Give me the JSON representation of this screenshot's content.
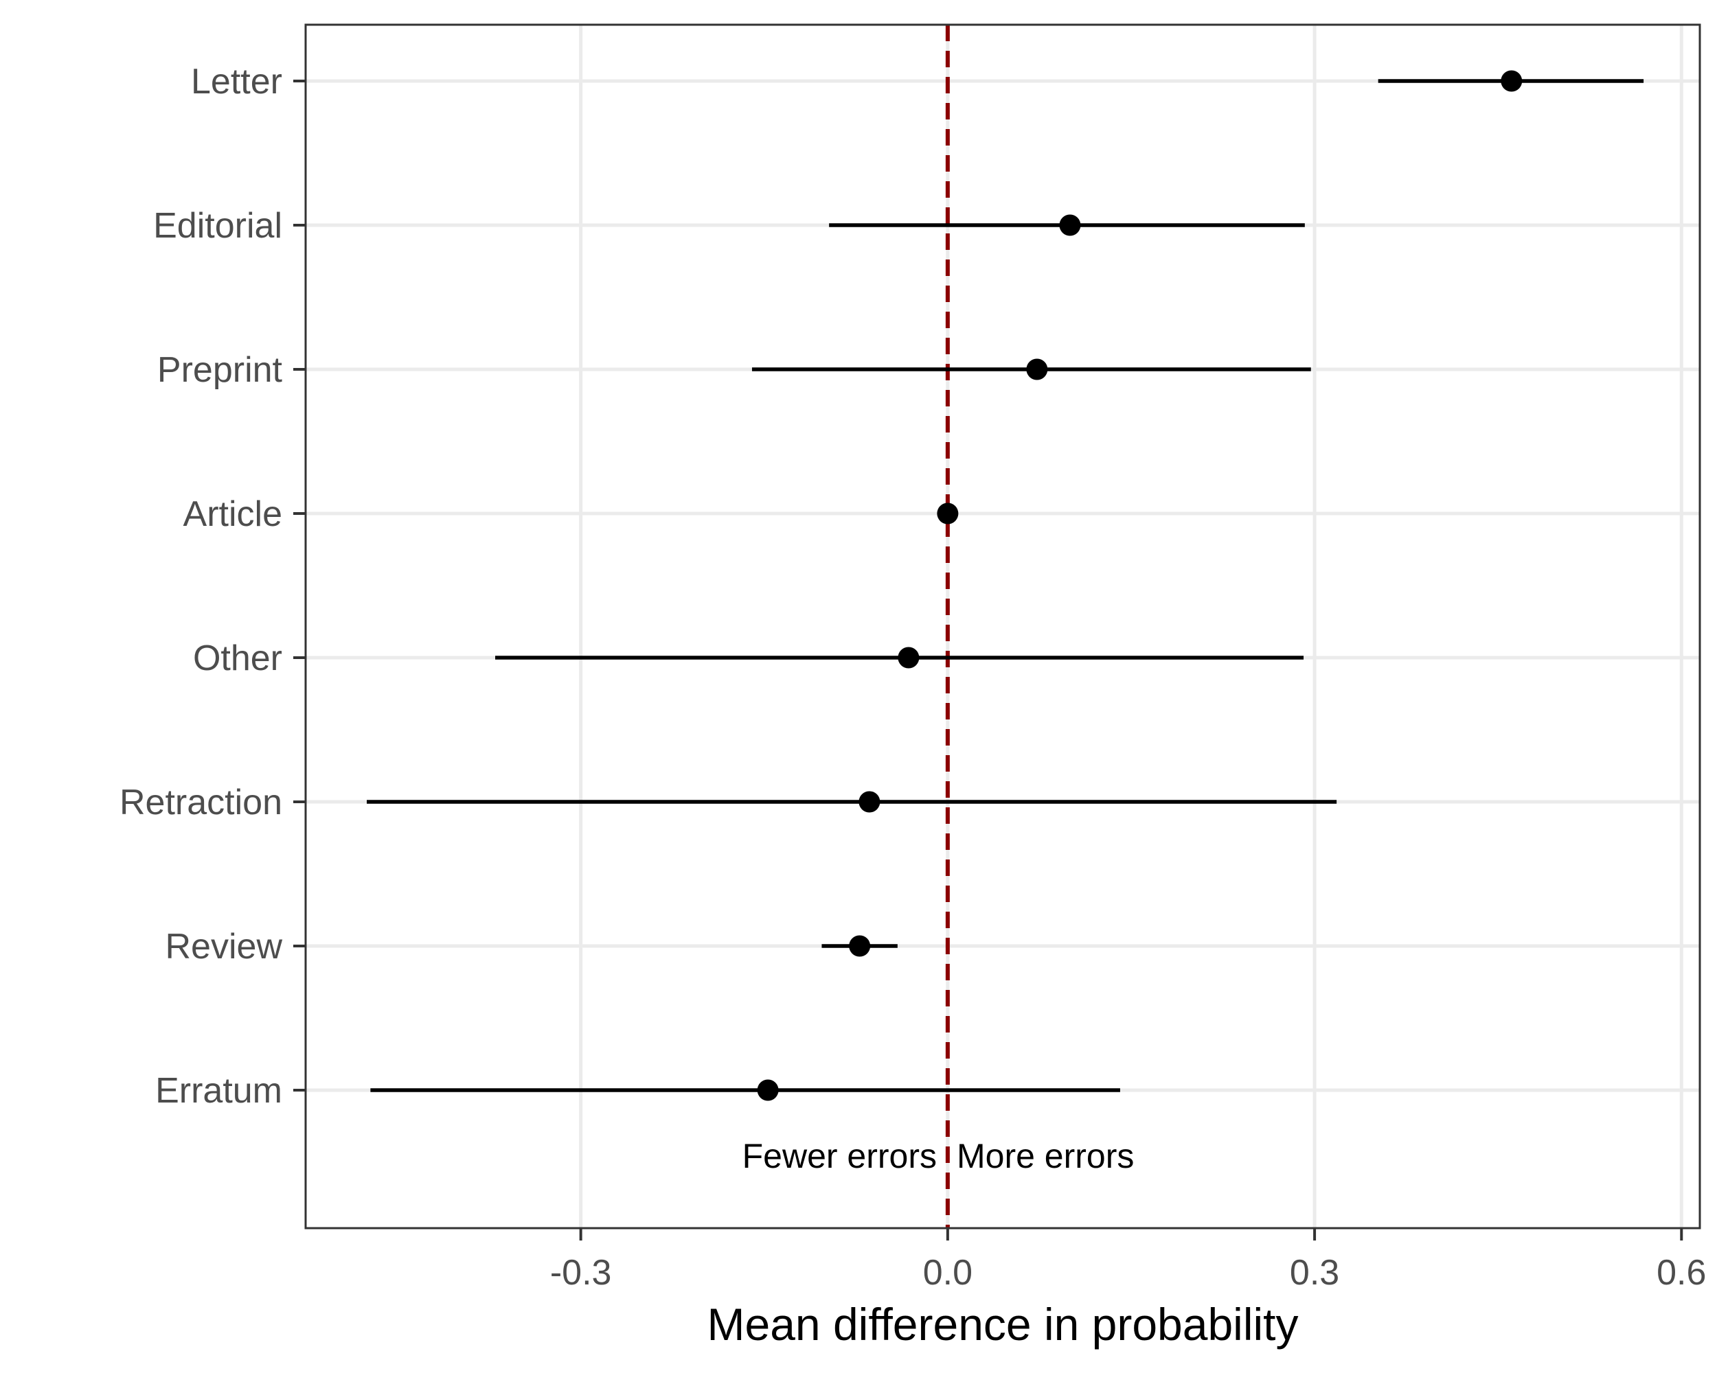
{
  "chart_data": {
    "type": "forest",
    "title": "",
    "xlabel": "Mean difference in probability",
    "ylabel": "",
    "xlim": [
      -0.525,
      0.615
    ],
    "xticks": [
      -0.3,
      0.0,
      0.3,
      0.6
    ],
    "xtick_labels": [
      "-0.3",
      "0.0",
      "0.3",
      "0.6"
    ],
    "grid": true,
    "legend": "none",
    "reference_line": {
      "x": 0.0,
      "style": "dashed",
      "color": "#8b0000"
    },
    "annotations": {
      "left": "Fewer errors",
      "right": "More errors"
    },
    "point_color": "#000000",
    "categories": [
      "Letter",
      "Editorial",
      "Preprint",
      "Article",
      "Other",
      "Retraction",
      "Review",
      "Erratum"
    ],
    "points": [
      {
        "label": "Letter",
        "estimate": 0.461,
        "lower": 0.352,
        "upper": 0.569
      },
      {
        "label": "Editorial",
        "estimate": 0.1,
        "lower": -0.097,
        "upper": 0.292
      },
      {
        "label": "Preprint",
        "estimate": 0.073,
        "lower": -0.16,
        "upper": 0.297
      },
      {
        "label": "Article",
        "estimate": 0.0,
        "lower": 0.0,
        "upper": 0.0
      },
      {
        "label": "Other",
        "estimate": -0.032,
        "lower": -0.37,
        "upper": 0.291
      },
      {
        "label": "Retraction",
        "estimate": -0.064,
        "lower": -0.475,
        "upper": 0.318
      },
      {
        "label": "Review",
        "estimate": -0.072,
        "lower": -0.103,
        "upper": -0.041
      },
      {
        "label": "Erratum",
        "estimate": -0.147,
        "lower": -0.472,
        "upper": 0.141
      }
    ]
  }
}
